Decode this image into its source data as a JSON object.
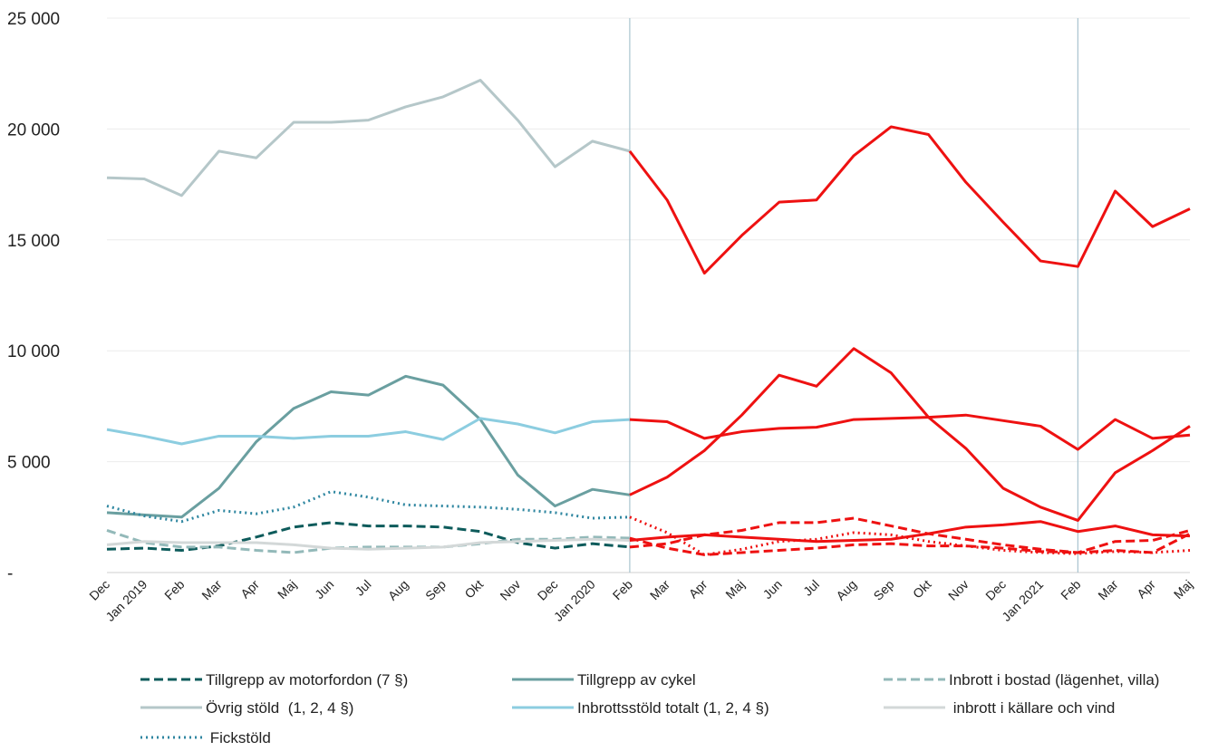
{
  "chart_data": {
    "type": "line",
    "categories": [
      "Dec",
      "Jan 2019",
      "Feb",
      "Mar",
      "Apr",
      "Maj",
      "Jun",
      "Jul",
      "Aug",
      "Sep",
      "Okt",
      "Nov",
      "Dec",
      "Jan 2020",
      "Feb",
      "Mar",
      "Apr",
      "Maj",
      "Jun",
      "Jul",
      "Aug",
      "Sep",
      "Okt",
      "Nov",
      "Dec",
      "Jan 2021",
      "Feb",
      "Mar",
      "Apr",
      "Maj"
    ],
    "ylim": [
      0,
      25000
    ],
    "yticks": [
      {
        "value": 0,
        "label": "-"
      },
      {
        "value": 5000,
        "label": "5 000"
      },
      {
        "value": 10000,
        "label": "10 000"
      },
      {
        "value": 15000,
        "label": "15 000"
      },
      {
        "value": 20000,
        "label": "20 000"
      },
      {
        "value": 25000,
        "label": "25 000"
      }
    ],
    "grid": true,
    "vlines": [
      14,
      26
    ],
    "highlight_color": "#ee1111",
    "series": [
      {
        "name": "Tillgrepp av motorfordon (7 §)",
        "color": "#0d5b5b",
        "style": "dashed",
        "values": [
          1050,
          1100,
          1000,
          1200,
          1600,
          2050,
          2250,
          2100,
          2100,
          2050,
          1850,
          1350,
          1100,
          1300,
          1150,
          1300,
          1700,
          1900,
          2250,
          2250,
          2450,
          2100,
          1750,
          1500,
          1250,
          1050,
          900,
          1400,
          1450,
          1900
        ]
      },
      {
        "name": "Tillgrepp av cykel",
        "color": "#6a9fa0",
        "style": "solid",
        "values": [
          2700,
          2600,
          2500,
          3800,
          5900,
          7400,
          8150,
          8000,
          8850,
          8450,
          6900,
          4400,
          3000,
          3750,
          3500,
          4300,
          5500,
          7100,
          8900,
          8400,
          10100,
          9000,
          7000,
          5600,
          3800,
          2950,
          2350,
          4500,
          5500,
          6600
        ]
      },
      {
        "name": "Inbrott i bostad (lägenhet, villa)",
        "color": "#93b9b9",
        "style": "dashed",
        "values": [
          1900,
          1350,
          1150,
          1150,
          1000,
          900,
          1100,
          1150,
          1150,
          1150,
          1300,
          1500,
          1500,
          1600,
          1550,
          1100,
          800,
          900,
          1000,
          1100,
          1250,
          1300,
          1200,
          1200,
          1100,
          950,
          900,
          1000,
          900,
          1750
        ]
      },
      {
        "name": "Övrig stöld  (1, 2, 4 §)",
        "color": "#b5c7c9",
        "style": "solid",
        "values": [
          17800,
          17750,
          17000,
          19000,
          18700,
          20300,
          20300,
          20400,
          21000,
          21450,
          22200,
          20400,
          18300,
          19450,
          19000,
          16800,
          13500,
          15200,
          16700,
          16800,
          18800,
          20100,
          19750,
          17600,
          15800,
          14050,
          13800,
          17200,
          15600,
          16400
        ]
      },
      {
        "name": "Inbrottsstöld totalt (1, 2, 4 §)",
        "color": "#8ccde0",
        "style": "solid",
        "values": [
          6450,
          6150,
          5800,
          6150,
          6150,
          6050,
          6150,
          6150,
          6350,
          6000,
          6950,
          6700,
          6300,
          6800,
          6900,
          6800,
          6050,
          6350,
          6500,
          6550,
          6900,
          6950,
          7000,
          7100,
          6850,
          6600,
          5550,
          6900,
          6050,
          6200
        ]
      },
      {
        "name": " inbrott i källare och vind",
        "color": "#d3d8d8",
        "style": "solid",
        "values": [
          1250,
          1400,
          1350,
          1350,
          1350,
          1250,
          1100,
          1050,
          1100,
          1150,
          1350,
          1400,
          1450,
          1500,
          1450,
          1600,
          1700,
          1600,
          1500,
          1400,
          1450,
          1500,
          1750,
          2050,
          2150,
          2300,
          1850,
          2100,
          1700,
          1650
        ]
      },
      {
        "name": " Fickstöld",
        "color": "#2e86a0",
        "style": "dotted",
        "values": [
          3000,
          2550,
          2300,
          2800,
          2650,
          2950,
          3650,
          3400,
          3050,
          3000,
          2950,
          2850,
          2700,
          2450,
          2500,
          1800,
          800,
          1050,
          1400,
          1500,
          1800,
          1700,
          1400,
          1200,
          1000,
          900,
          850,
          950,
          900,
          1000
        ]
      }
    ]
  }
}
